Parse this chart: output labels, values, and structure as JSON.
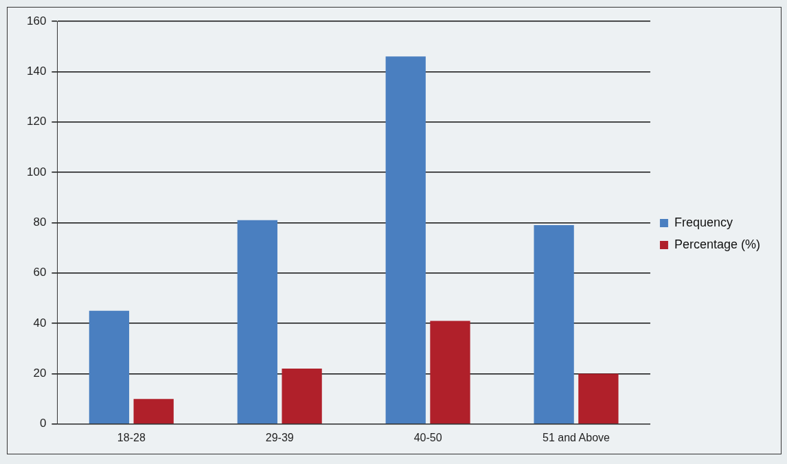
{
  "chart_data": {
    "type": "bar",
    "categories": [
      "18-28",
      "29-39",
      "40-50",
      "51 and Above"
    ],
    "series": [
      {
        "name": "Frequency",
        "color": "#4a7fc0",
        "values": [
          45,
          81,
          146,
          79
        ]
      },
      {
        "name": "Percentage (%)",
        "color": "#b0202a",
        "values": [
          10,
          22,
          41,
          20
        ]
      }
    ],
    "ylim": [
      0,
      160
    ],
    "yticks": [
      0,
      20,
      40,
      60,
      80,
      100,
      120,
      140,
      160
    ],
    "grid": "y",
    "legend": "right"
  }
}
